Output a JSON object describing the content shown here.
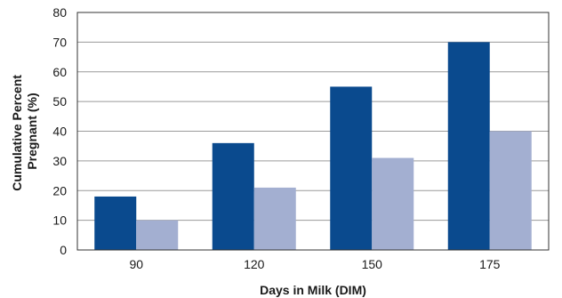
{
  "chart_data": {
    "type": "bar",
    "title": "",
    "xlabel": "Days in Milk (DIM)",
    "ylabel_lines": [
      "Cumulative Percent",
      "Pregnant (%)"
    ],
    "categories": [
      "90",
      "120",
      "150",
      "175"
    ],
    "series": [
      {
        "values": [
          18,
          36,
          55,
          70
        ],
        "color": "#0a4a8e"
      },
      {
        "values": [
          10,
          21,
          31,
          40
        ],
        "color": "#a3afd1"
      }
    ],
    "ylim": [
      0,
      80
    ],
    "yticks": [
      0,
      10,
      20,
      30,
      40,
      50,
      60,
      70,
      80
    ],
    "grid": true,
    "legend": "none"
  }
}
